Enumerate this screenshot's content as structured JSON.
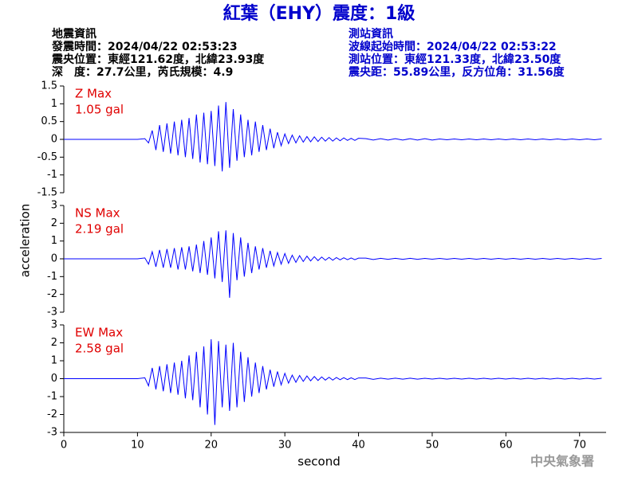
{
  "header": {
    "title": "紅葉（EHY）震度：1級",
    "left": [
      "地震資訊",
      "發震時間：2024/04/22 02:53:23",
      "震央位置：東經121.62度，北緯23.93度",
      "深　度：27.7公里，芮氏規模：4.9"
    ],
    "right": [
      "測站資訊",
      "波線起始時間：2024/04/22 02:53:22",
      "測站位置：東經121.33度，北緯23.50度",
      "震央距：55.89公里，反方位角：31.56度"
    ]
  },
  "shared_axes": {
    "xlabel": "second",
    "ylabel": "acceleration"
  },
  "footer": "中央氣象署",
  "chart_data": [
    {
      "type": "line",
      "color": "#0000ff",
      "annotation_color": "#e00000",
      "annotations": [
        "Z Max",
        "1.05 gal"
      ],
      "xlim": [
        0,
        73.6
      ],
      "ylim": [
        -1.5,
        1.5
      ],
      "yticks": [
        -1.5,
        -1,
        -0.5,
        0,
        0.5,
        1,
        1.5
      ],
      "x": [
        0,
        1,
        2,
        3,
        4,
        5,
        6,
        7,
        8,
        9,
        10,
        11,
        11.5,
        12,
        12.5,
        13,
        13.5,
        14,
        14.5,
        15,
        15.5,
        16,
        16.5,
        17,
        17.5,
        18,
        18.5,
        19,
        19.5,
        20,
        20.5,
        21,
        21.5,
        22,
        22.5,
        23,
        23.5,
        24,
        24.5,
        25,
        25.5,
        26,
        26.5,
        27,
        27.5,
        28,
        28.5,
        29,
        29.5,
        30,
        30.5,
        31,
        31.5,
        32,
        32.5,
        33,
        33.5,
        34,
        34.5,
        35,
        35.5,
        36,
        36.5,
        37,
        37.5,
        38,
        38.5,
        39,
        39.5,
        40,
        41,
        42,
        43,
        44,
        45,
        46,
        47,
        48,
        49,
        50,
        51,
        52,
        53,
        54,
        55,
        56,
        57,
        58,
        59,
        60,
        61,
        62,
        63,
        64,
        65,
        66,
        67,
        68,
        69,
        70,
        71,
        72,
        73
      ],
      "values": [
        0,
        0,
        0,
        0,
        0,
        0,
        0,
        0,
        0,
        0,
        0,
        0.02,
        -0.1,
        0.25,
        -0.3,
        0.4,
        -0.35,
        0.45,
        -0.4,
        0.5,
        -0.45,
        0.55,
        -0.5,
        0.6,
        -0.55,
        0.7,
        -0.65,
        0.75,
        -0.7,
        0.8,
        -0.75,
        0.95,
        -0.9,
        1.05,
        -0.8,
        0.85,
        -0.6,
        0.7,
        -0.5,
        0.55,
        -0.45,
        0.5,
        -0.35,
        0.4,
        -0.3,
        0.3,
        -0.25,
        0.2,
        -0.18,
        0.15,
        -0.12,
        0.12,
        -0.1,
        0.1,
        -0.08,
        0.08,
        -0.07,
        0.07,
        -0.06,
        0.06,
        -0.05,
        0.05,
        -0.05,
        0.04,
        -0.04,
        0.04,
        -0.03,
        0.03,
        -0.03,
        0.03,
        0.02,
        -0.02,
        0.02,
        -0.02,
        0.02,
        -0.02,
        0.02,
        -0.02,
        0.02,
        -0.02,
        0.01,
        -0.01,
        0.01,
        -0.01,
        0.01,
        -0.01,
        0.01,
        -0.01,
        0.01,
        -0.01,
        0.01,
        -0.01,
        0.01,
        -0.01,
        0.01,
        -0.01,
        0.01,
        -0.01,
        0.01,
        -0.01,
        0.01,
        -0.01,
        0.01
      ]
    },
    {
      "type": "line",
      "color": "#0000ff",
      "annotation_color": "#e00000",
      "annotations": [
        "NS Max",
        "2.19 gal"
      ],
      "xlim": [
        0,
        73.6
      ],
      "ylim": [
        -3,
        3
      ],
      "yticks": [
        -3,
        -2,
        -1,
        0,
        1,
        2,
        3
      ],
      "x": [
        0,
        1,
        2,
        3,
        4,
        5,
        6,
        7,
        8,
        9,
        10,
        11,
        11.5,
        12,
        12.5,
        13,
        13.5,
        14,
        14.5,
        15,
        15.5,
        16,
        16.5,
        17,
        17.5,
        18,
        18.5,
        19,
        19.5,
        20,
        20.5,
        21,
        21.5,
        22,
        22.5,
        23,
        23.5,
        24,
        24.5,
        25,
        25.5,
        26,
        26.5,
        27,
        27.5,
        28,
        28.5,
        29,
        29.5,
        30,
        30.5,
        31,
        31.5,
        32,
        32.5,
        33,
        33.5,
        34,
        34.5,
        35,
        35.5,
        36,
        36.5,
        37,
        37.5,
        38,
        38.5,
        39,
        39.5,
        40,
        41,
        42,
        43,
        44,
        45,
        46,
        47,
        48,
        49,
        50,
        51,
        52,
        53,
        54,
        55,
        56,
        57,
        58,
        59,
        60,
        61,
        62,
        63,
        64,
        65,
        66,
        67,
        68,
        69,
        70,
        71,
        72,
        73
      ],
      "values": [
        0,
        0,
        0,
        0,
        0,
        0,
        0,
        0,
        0,
        0,
        0,
        0.05,
        -0.3,
        0.4,
        -0.45,
        0.5,
        -0.5,
        0.55,
        -0.5,
        0.6,
        -0.6,
        0.65,
        -0.6,
        0.7,
        -0.7,
        0.8,
        -0.8,
        1.0,
        -0.9,
        1.2,
        -1.1,
        1.55,
        -1.3,
        1.6,
        -2.19,
        1.45,
        -1.2,
        1.2,
        -1.0,
        0.9,
        -0.8,
        0.7,
        -0.6,
        0.6,
        -0.5,
        0.45,
        -0.4,
        0.35,
        -0.3,
        0.3,
        -0.25,
        0.2,
        -0.2,
        0.18,
        -0.15,
        0.15,
        -0.12,
        0.12,
        -0.1,
        0.1,
        -0.08,
        0.08,
        -0.08,
        0.07,
        -0.06,
        0.06,
        -0.05,
        0.05,
        -0.05,
        0.04,
        0.04,
        -0.04,
        0.03,
        -0.03,
        0.03,
        -0.03,
        0.03,
        -0.03,
        0.02,
        -0.02,
        0.02,
        -0.02,
        0.02,
        -0.02,
        0.02,
        -0.02,
        0.02,
        -0.02,
        0.02,
        -0.02,
        0.02,
        -0.02,
        0.02,
        -0.02,
        0.02,
        -0.02,
        0.02,
        -0.02,
        0.02,
        -0.02,
        0.02,
        -0.02,
        0.02
      ]
    },
    {
      "type": "line",
      "color": "#0000ff",
      "annotation_color": "#e00000",
      "annotations": [
        "EW Max",
        "2.58 gal"
      ],
      "xlim": [
        0,
        73.6
      ],
      "ylim": [
        -3,
        3
      ],
      "yticks": [
        -3,
        -2,
        -1,
        0,
        1,
        2,
        3
      ],
      "xticks": [
        0,
        10,
        20,
        30,
        40,
        50,
        60,
        70
      ],
      "x": [
        0,
        1,
        2,
        3,
        4,
        5,
        6,
        7,
        8,
        9,
        10,
        11,
        11.5,
        12,
        12.5,
        13,
        13.5,
        14,
        14.5,
        15,
        15.5,
        16,
        16.5,
        17,
        17.5,
        18,
        18.5,
        19,
        19.5,
        20,
        20.5,
        21,
        21.5,
        22,
        22.5,
        23,
        23.5,
        24,
        24.5,
        25,
        25.5,
        26,
        26.5,
        27,
        27.5,
        28,
        28.5,
        29,
        29.5,
        30,
        30.5,
        31,
        31.5,
        32,
        32.5,
        33,
        33.5,
        34,
        34.5,
        35,
        35.5,
        36,
        36.5,
        37,
        37.5,
        38,
        38.5,
        39,
        39.5,
        40,
        41,
        42,
        43,
        44,
        45,
        46,
        47,
        48,
        49,
        50,
        51,
        52,
        53,
        54,
        55,
        56,
        57,
        58,
        59,
        60,
        61,
        62,
        63,
        64,
        65,
        66,
        67,
        68,
        69,
        70,
        71,
        72,
        73
      ],
      "values": [
        0,
        0,
        0,
        0,
        0,
        0,
        0,
        0,
        0,
        0,
        0,
        0.05,
        -0.4,
        0.6,
        -0.6,
        0.7,
        -0.7,
        0.8,
        -0.8,
        0.9,
        -0.9,
        1.0,
        -1.1,
        1.3,
        -1.2,
        1.5,
        -1.6,
        1.8,
        -2.0,
        2.2,
        -2.58,
        2.1,
        -1.6,
        1.9,
        -1.8,
        2.0,
        -1.6,
        1.5,
        -1.3,
        1.2,
        -1.0,
        0.9,
        -0.8,
        0.7,
        -0.6,
        0.5,
        -0.45,
        0.4,
        -0.35,
        0.3,
        -0.25,
        0.2,
        -0.2,
        0.18,
        -0.15,
        0.15,
        -0.12,
        0.12,
        -0.1,
        0.1,
        -0.08,
        0.08,
        -0.08,
        0.07,
        -0.06,
        0.06,
        -0.05,
        0.05,
        -0.05,
        0.04,
        0.04,
        -0.04,
        0.03,
        -0.03,
        0.03,
        -0.03,
        0.03,
        -0.03,
        0.02,
        -0.02,
        0.02,
        -0.02,
        0.02,
        -0.02,
        0.02,
        -0.02,
        0.02,
        -0.02,
        0.02,
        -0.02,
        0.02,
        -0.02,
        0.02,
        -0.02,
        0.02,
        -0.02,
        0.02,
        -0.02,
        0.02,
        -0.02,
        0.02,
        -0.02,
        0.02
      ]
    }
  ]
}
